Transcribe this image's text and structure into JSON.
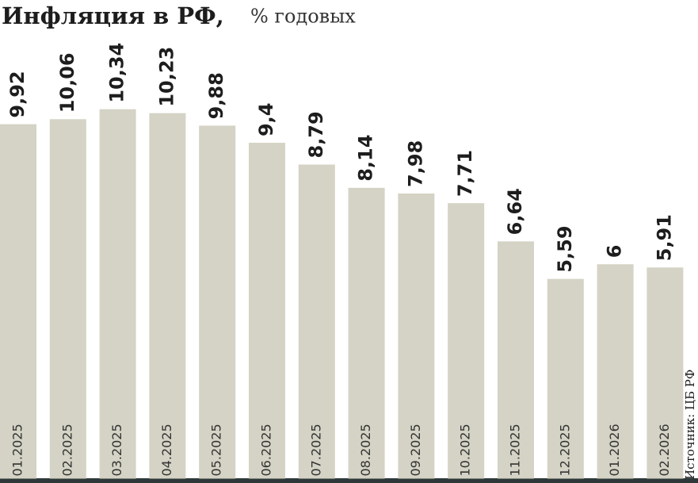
{
  "chart_data": {
    "type": "bar",
    "title": "Инфляция в РФ,",
    "subtitle": "% годовых",
    "source": "Источник: ЦБ РФ",
    "categories": [
      "01.2025",
      "02.2025",
      "03.2025",
      "04.2025",
      "05.2025",
      "06.2025",
      "07.2025",
      "08.2025",
      "09.2025",
      "10.2025",
      "11.2025",
      "12.2025",
      "01.2026",
      "02.2026"
    ],
    "values": [
      9.92,
      10.06,
      10.34,
      10.23,
      9.88,
      9.4,
      8.79,
      8.14,
      7.98,
      7.71,
      6.64,
      5.59,
      6,
      5.91
    ],
    "value_labels": [
      "9,92",
      "10,06",
      "10,34",
      "10,23",
      "9,88",
      "9,4",
      "8,79",
      "8,14",
      "7,98",
      "7,71",
      "6,64",
      "5,59",
      "6",
      "5,91"
    ],
    "color": "#d4d3c5"
  }
}
